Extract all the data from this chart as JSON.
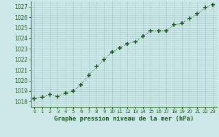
{
  "x": [
    0,
    1,
    2,
    3,
    4,
    5,
    6,
    7,
    8,
    9,
    10,
    11,
    12,
    13,
    14,
    15,
    16,
    17,
    18,
    19,
    20,
    21,
    22,
    23
  ],
  "y": [
    1018.3,
    1018.4,
    1018.7,
    1018.5,
    1018.8,
    1019.0,
    1019.6,
    1020.5,
    1021.3,
    1022.0,
    1022.7,
    1023.1,
    1023.5,
    1023.7,
    1024.2,
    1024.7,
    1024.7,
    1024.7,
    1025.3,
    1025.4,
    1025.9,
    1026.3,
    1026.9,
    1027.2
  ],
  "line_color": "#1a5c1a",
  "marker": "+",
  "marker_size": 4,
  "marker_lw": 1.2,
  "bg_color": "#cce8e8",
  "grid_color": "#aacccc",
  "title": "Graphe pression niveau de la mer (hPa)",
  "ylim": [
    1017.5,
    1027.5
  ],
  "xlim": [
    -0.5,
    23.5
  ],
  "yticks": [
    1018,
    1019,
    1020,
    1021,
    1022,
    1023,
    1024,
    1025,
    1026,
    1027
  ],
  "xticks": [
    0,
    1,
    2,
    3,
    4,
    5,
    6,
    7,
    8,
    9,
    10,
    11,
    12,
    13,
    14,
    15,
    16,
    17,
    18,
    19,
    20,
    21,
    22,
    23
  ],
  "tick_color": "#1a5c1a",
  "spine_color": "#1a5c1a",
  "text_color": "#1a5c1a"
}
